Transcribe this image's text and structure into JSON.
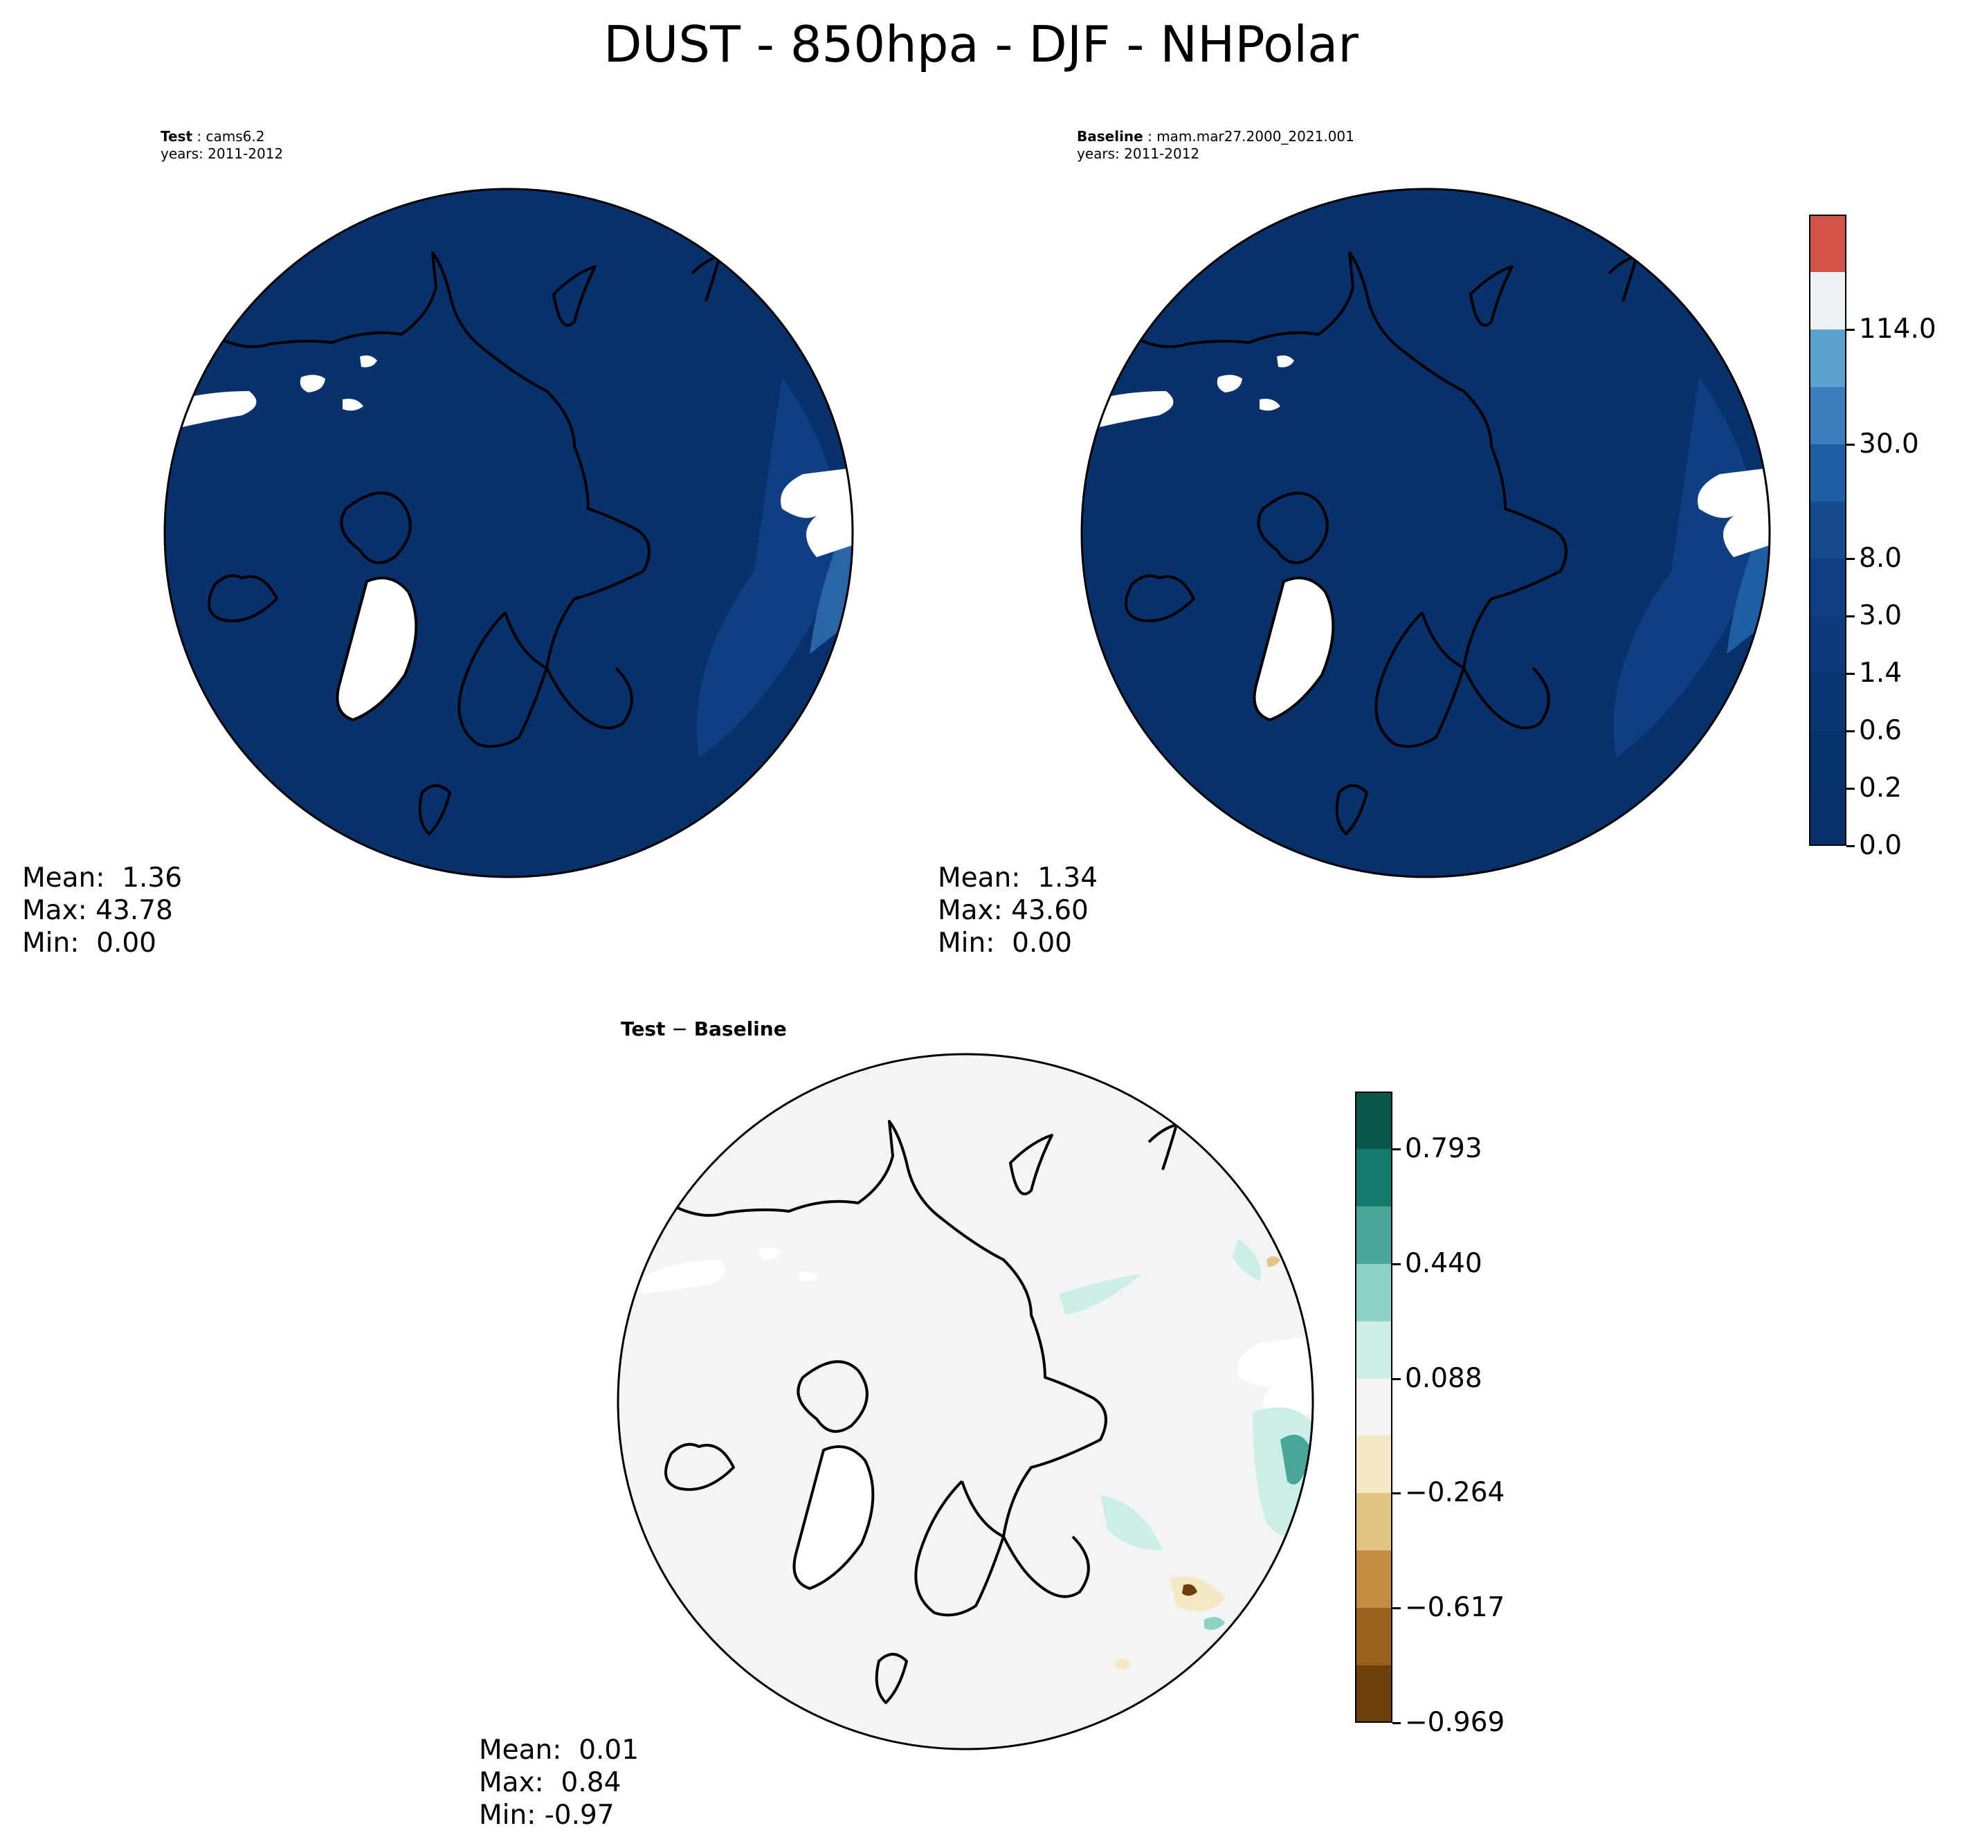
{
  "figure_title": "DUST - 850hpa - DJF - NHPolar",
  "panels": {
    "test": {
      "label": "Test",
      "case": "cams6.2",
      "years": "years: 2011-2012",
      "stats": {
        "mean": "Mean:  1.36",
        "max": "Max: 43.78",
        "min": "Min:  0.00"
      }
    },
    "baseline": {
      "label": "Baseline",
      "case": "mam.mar27.2000_2021.001",
      "years": "years: 2011-2012",
      "stats": {
        "mean": "Mean:  1.34",
        "max": "Max: 43.60",
        "min": "Min:  0.00"
      }
    },
    "diff": {
      "title_left": "Test",
      "title_op": " − ",
      "title_right": "Baseline",
      "stats": {
        "mean": "Mean:  0.01",
        "max": "Max:  0.84",
        "min": "Min: -0.97"
      }
    }
  },
  "colorbar_main": {
    "ticks": [
      "0.0",
      "0.2",
      "0.6",
      "1.4",
      "3.0",
      "8.0",
      "30.0",
      "114.0"
    ],
    "colors": [
      "#08306b",
      "#08326e",
      "#0a3573",
      "#0d3a7a",
      "#0f3f82",
      "#154a8c",
      "#1e5ea3",
      "#3c7fbd",
      "#5ba2cf",
      "#eef1f5",
      "#d1534a"
    ]
  },
  "colorbar_diff": {
    "ticks": [
      "−0.969",
      "−0.617",
      "−0.264",
      "0.088",
      "0.440",
      "0.793"
    ],
    "colors": [
      "#6b3f0a",
      "#9a6020",
      "#c48e40",
      "#e3c683",
      "#f6e8c3",
      "#f3f5f4",
      "#cdeee6",
      "#8dd3c5",
      "#48a79a",
      "#147a6e",
      "#08574b"
    ]
  },
  "map_colors": {
    "ocean_test": "#08306b",
    "diff_background": "#f3f5f4",
    "coast": "#000000"
  }
}
